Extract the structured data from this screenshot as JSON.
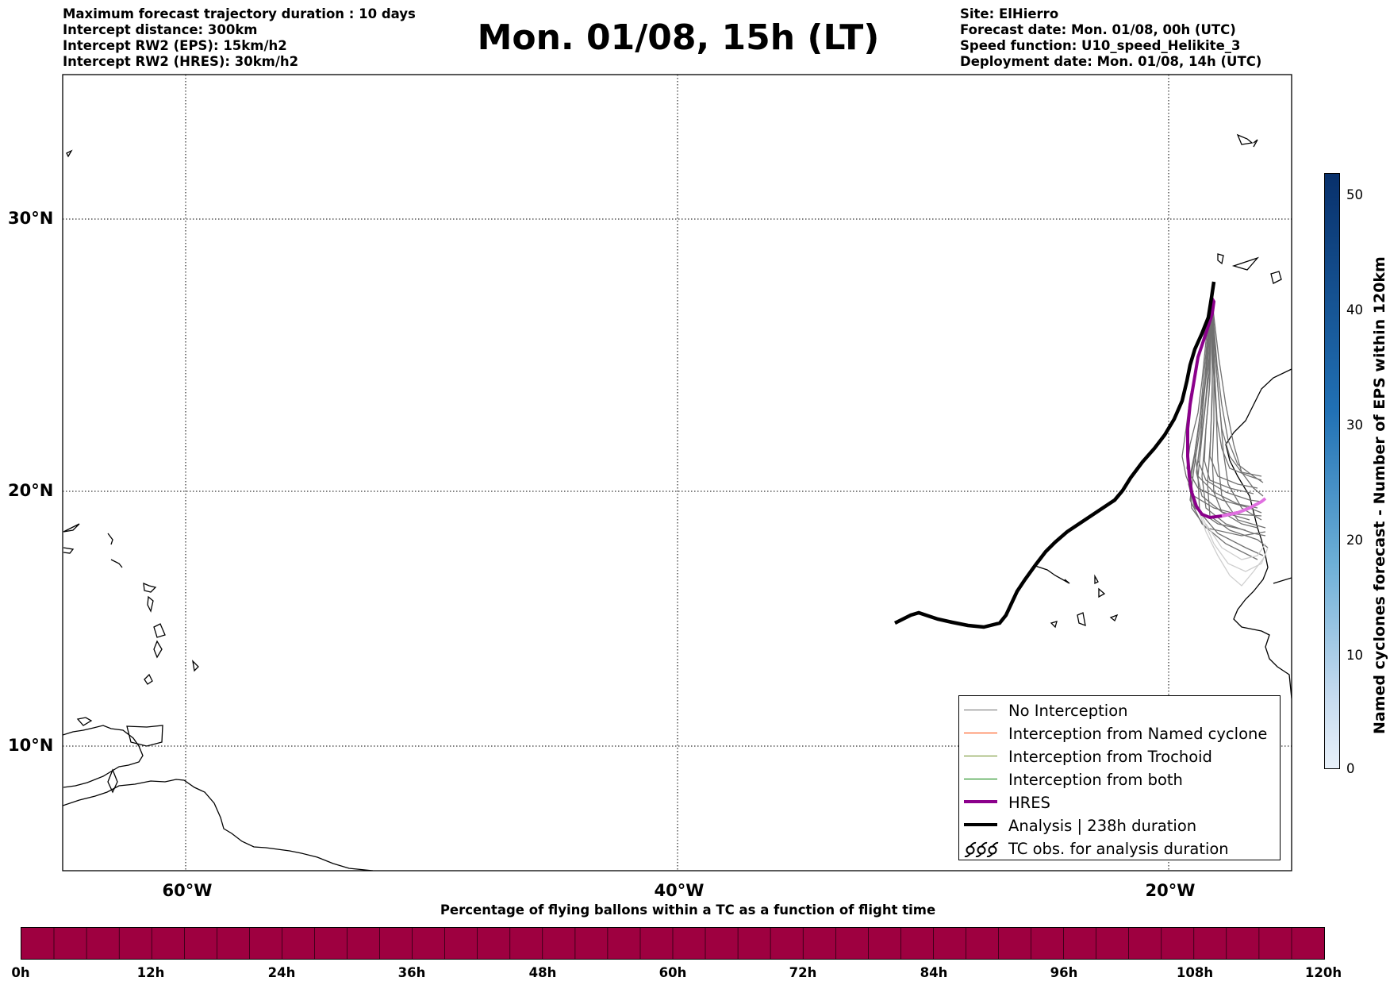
{
  "header": {
    "left_lines": [
      "Maximum forecast trajectory duration : 10 days",
      "Intercept distance: 300km",
      "Intercept RW2 (EPS):  15km/h2",
      "Intercept RW2 (HRES): 30km/h2"
    ],
    "right_lines": [
      "Site: ElHierro",
      "Forecast date: Mon. 01/08, 00h (UTC)",
      "Speed function: U10_speed_Helikite_3",
      "Deployment date: Mon. 01/08, 14h (UTC)"
    ],
    "title": "Mon. 01/08, 15h (LT)"
  },
  "map": {
    "lat_labels": [
      "30°N",
      "20°N",
      "10°N"
    ],
    "lon_labels": [
      "60°W",
      "40°W",
      "20°W"
    ]
  },
  "legend": {
    "items": [
      {
        "label": "No Interception",
        "color": "#707070",
        "style": "thin"
      },
      {
        "label": "Interception from Named cyclone",
        "color": "#ff4500",
        "style": "thin"
      },
      {
        "label": "Interception from Trochoid",
        "color": "#6b8e23",
        "style": "thin"
      },
      {
        "label": "Interception from both",
        "color": "#008000",
        "style": "thin"
      },
      {
        "label": "HRES",
        "color": "#8b008b",
        "style": "thick"
      },
      {
        "label": "Analysis | 238h duration",
        "color": "#000000",
        "style": "thick"
      },
      {
        "label": "TC obs. for analysis duration",
        "icon": "cyclone-symbol-icon",
        "style": "icon"
      }
    ]
  },
  "colorbar_bottom": {
    "title": "Percentage of flying ballons within a TC as a function of flight time",
    "ticks": [
      "0h",
      "12h",
      "24h",
      "36h",
      "48h",
      "60h",
      "72h",
      "84h",
      "96h",
      "108h",
      "120h"
    ],
    "fill_color": "#9e0040"
  },
  "colorbar_right": {
    "label": "Named cyclones forecast - Number of EPS within 120km",
    "ticks": [
      "50",
      "40",
      "30",
      "20",
      "10",
      "0"
    ],
    "gradient_top": "#08306b",
    "gradient_bottom": "#e8f1fa"
  }
}
